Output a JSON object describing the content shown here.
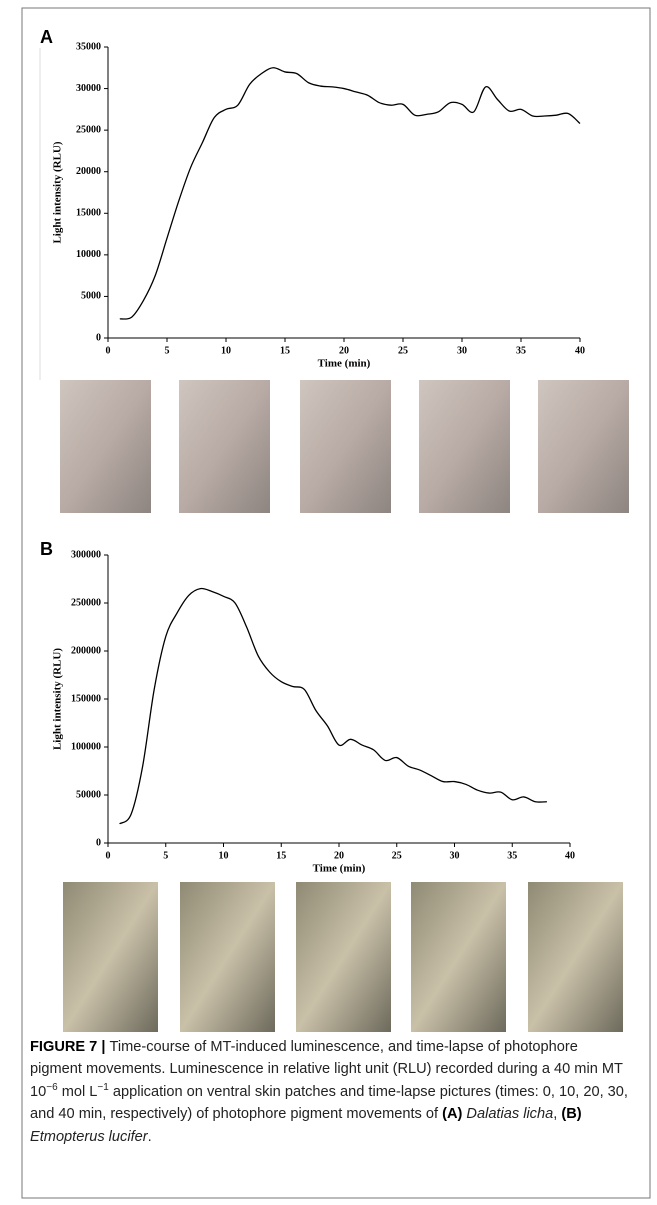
{
  "chart_data": [
    {
      "type": "line",
      "panel": "A",
      "x_label": "Time (min)",
      "y_label": "Light intensity (RLU)",
      "color": "#000000",
      "x": [
        1,
        2,
        3,
        4,
        5,
        6,
        7,
        8,
        9,
        10,
        11,
        12,
        13,
        14,
        15,
        16,
        17,
        18,
        19,
        20,
        21,
        22,
        23,
        24,
        25,
        26,
        27,
        28,
        29,
        30,
        31,
        32,
        33,
        34,
        35,
        36,
        37,
        38,
        39,
        40
      ],
      "values": [
        2300,
        2500,
        4500,
        7500,
        12000,
        16500,
        20500,
        23500,
        26500,
        27500,
        28000,
        30500,
        31800,
        32500,
        32000,
        31800,
        30700,
        30300,
        30200,
        30000,
        29600,
        29200,
        28300,
        28000,
        28100,
        26800,
        26900,
        27200,
        28300,
        28100,
        27200,
        30200,
        28700,
        27300,
        27500,
        26700,
        26700,
        26800,
        27000,
        25800
      ],
      "xlim": [
        0,
        40
      ],
      "xticks": [
        0,
        5,
        10,
        15,
        20,
        25,
        30,
        35,
        40
      ],
      "ylim": [
        0,
        35000
      ],
      "yticks": [
        0,
        5000,
        10000,
        15000,
        20000,
        25000,
        30000,
        35000
      ]
    },
    {
      "type": "line",
      "panel": "B",
      "x_label": "Time (min)",
      "y_label": "Light intensity (RLU)",
      "color": "#000000",
      "x": [
        1,
        2,
        3,
        4,
        5,
        6,
        7,
        8,
        9,
        10,
        11,
        12,
        13,
        14,
        15,
        16,
        17,
        18,
        19,
        20,
        21,
        22,
        23,
        24,
        25,
        26,
        27,
        28,
        29,
        30,
        31,
        32,
        33,
        34,
        35,
        36,
        37,
        38
      ],
      "values": [
        20000,
        30000,
        80000,
        160000,
        215000,
        240000,
        258000,
        265000,
        262000,
        257000,
        250000,
        225000,
        195000,
        178000,
        168000,
        163000,
        160000,
        138000,
        122000,
        102000,
        108000,
        102000,
        97000,
        86000,
        89000,
        80000,
        76000,
        70000,
        64000,
        64000,
        61000,
        55000,
        52000,
        53000,
        45000,
        48000,
        43000,
        43000
      ],
      "xlim": [
        0,
        40
      ],
      "xticks": [
        0,
        5,
        10,
        15,
        20,
        25,
        30,
        35,
        40
      ],
      "ylim": [
        0,
        300000
      ],
      "yticks": [
        0,
        50000,
        100000,
        150000,
        200000,
        250000,
        300000
      ]
    }
  ],
  "caption": [
    {
      "text": "FIGURE 7 | ",
      "bold": true
    },
    {
      "text": "Time-course of MT-induced luminescence, and time-lapse of photophore pigment movements. Luminescence in relative light unit (RLU) recorded during a 40 min MT 10"
    },
    {
      "text": "−6",
      "sup": true
    },
    {
      "text": " mol L"
    },
    {
      "text": "−1",
      "sup": true
    },
    {
      "text": " application on ventral skin patches and time-lapse pictures (times: 0, 10, 20, 30, and 40 min, respectively) of photophore pigment movements of "
    },
    {
      "text": "(A) ",
      "bold": true
    },
    {
      "text": "Dalatias licha",
      "italic": true
    },
    {
      "text": ", "
    },
    {
      "text": "(B) ",
      "bold": true
    },
    {
      "text": "Etmopterus lucifer",
      "italic": true
    },
    {
      "text": "."
    }
  ]
}
